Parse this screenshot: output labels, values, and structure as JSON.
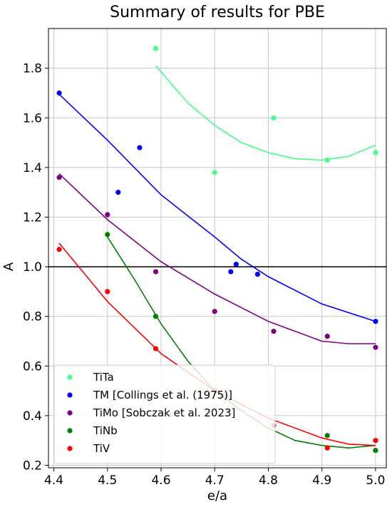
{
  "chart_data": {
    "type": "scatter",
    "title": "Summary of results for PBE",
    "xlabel": "e/a",
    "ylabel": "A",
    "xlim": [
      4.39,
      5.02
    ],
    "ylim": [
      0.19,
      1.96
    ],
    "xticks": [
      4.4,
      4.5,
      4.6,
      4.7,
      4.8,
      4.9,
      5.0
    ],
    "xtick_labels": [
      "4.4",
      "4.5",
      "4.6",
      "4.7",
      "4.8",
      "4.9",
      "5.0"
    ],
    "yticks": [
      0.2,
      0.4,
      0.6,
      0.8,
      1.0,
      1.2,
      1.4,
      1.6,
      1.8
    ],
    "ytick_labels": [
      "0.2",
      "0.4",
      "0.6",
      "0.8",
      "1.0",
      "1.2",
      "1.4",
      "1.6",
      "1.8"
    ],
    "grid": true,
    "legend_position": "bottom-left",
    "reference_line": {
      "y": 1.0,
      "color": "#000000"
    },
    "series": [
      {
        "name": "TiTa",
        "color": "#44ff88",
        "points": [
          [
            4.59,
            1.88
          ],
          [
            4.7,
            1.38
          ],
          [
            4.81,
            1.6
          ],
          [
            4.91,
            1.43
          ],
          [
            5.0,
            1.46
          ]
        ],
        "fit": [
          [
            4.59,
            1.81
          ],
          [
            4.65,
            1.66
          ],
          [
            4.7,
            1.57
          ],
          [
            4.75,
            1.5
          ],
          [
            4.8,
            1.46
          ],
          [
            4.85,
            1.435
          ],
          [
            4.9,
            1.43
          ],
          [
            4.95,
            1.445
          ],
          [
            5.0,
            1.49
          ]
        ]
      },
      {
        "name": "TM [Collings et al. (1975)]",
        "color": "#0000ff",
        "points": [
          [
            4.41,
            1.7
          ],
          [
            4.52,
            1.3
          ],
          [
            4.56,
            1.48
          ],
          [
            4.73,
            0.98
          ],
          [
            4.74,
            1.01
          ],
          [
            4.78,
            0.97
          ],
          [
            5.0,
            0.78
          ]
        ],
        "fit": [
          [
            4.41,
            1.695
          ],
          [
            4.5,
            1.51
          ],
          [
            4.6,
            1.29
          ],
          [
            4.7,
            1.12
          ],
          [
            4.75,
            1.03
          ],
          [
            4.8,
            0.96
          ],
          [
            4.9,
            0.85
          ],
          [
            5.0,
            0.78
          ]
        ]
      },
      {
        "name": "TiMo [Sobczak et al. 2023]",
        "color": "#800080",
        "points": [
          [
            4.41,
            1.36
          ],
          [
            4.5,
            1.21
          ],
          [
            4.59,
            0.98
          ],
          [
            4.7,
            0.82
          ],
          [
            4.81,
            0.74
          ],
          [
            4.91,
            0.72
          ],
          [
            5.0,
            0.675
          ]
        ],
        "fit": [
          [
            4.41,
            1.375
          ],
          [
            4.5,
            1.19
          ],
          [
            4.6,
            1.02
          ],
          [
            4.7,
            0.89
          ],
          [
            4.8,
            0.78
          ],
          [
            4.9,
            0.7
          ],
          [
            4.95,
            0.69
          ],
          [
            5.0,
            0.69
          ]
        ]
      },
      {
        "name": "TiNb",
        "color": "#008000",
        "points": [
          [
            4.5,
            1.13
          ],
          [
            4.59,
            0.8
          ],
          [
            4.7,
            0.5
          ],
          [
            4.81,
            0.36
          ],
          [
            4.91,
            0.32
          ],
          [
            5.0,
            0.26
          ]
        ],
        "fit": [
          [
            4.5,
            1.12
          ],
          [
            4.55,
            0.95
          ],
          [
            4.6,
            0.77
          ],
          [
            4.65,
            0.62
          ],
          [
            4.7,
            0.5
          ],
          [
            4.75,
            0.42
          ],
          [
            4.8,
            0.35
          ],
          [
            4.85,
            0.3
          ],
          [
            4.9,
            0.28
          ],
          [
            4.95,
            0.27
          ],
          [
            5.0,
            0.28
          ]
        ]
      },
      {
        "name": "TiV",
        "color": "#ff0000",
        "points": [
          [
            4.41,
            1.07
          ],
          [
            4.5,
            0.9
          ],
          [
            4.59,
            0.67
          ],
          [
            4.7,
            0.5
          ],
          [
            4.81,
            0.36
          ],
          [
            4.91,
            0.27
          ],
          [
            5.0,
            0.3
          ]
        ],
        "fit": [
          [
            4.41,
            1.095
          ],
          [
            4.5,
            0.86
          ],
          [
            4.6,
            0.65
          ],
          [
            4.7,
            0.5
          ],
          [
            4.8,
            0.39
          ],
          [
            4.9,
            0.31
          ],
          [
            4.95,
            0.285
          ],
          [
            5.0,
            0.28
          ]
        ]
      }
    ]
  }
}
